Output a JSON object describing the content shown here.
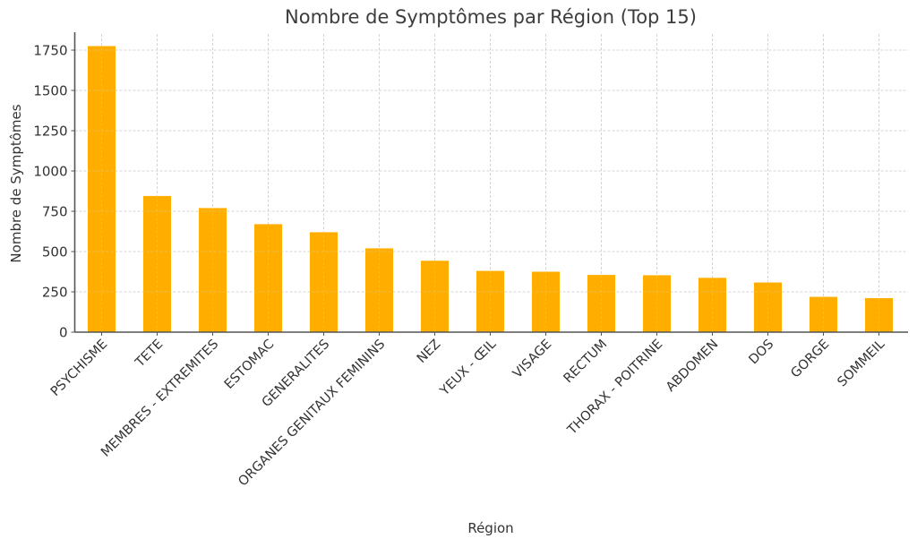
{
  "chart_data": {
    "type": "bar",
    "title": "Nombre de Symptômes par Région (Top 15)",
    "xlabel": "Région",
    "ylabel": "Nombre de Symptômes",
    "categories": [
      "PSYCHISME",
      "TETE",
      "MEMBRES - EXTREMITES",
      "ESTOMAC",
      "GENERALITES",
      "ORGANES GENITAUX FEMININS",
      "NEZ",
      "YEUX - ŒIL",
      "VISAGE",
      "RECTUM",
      "THORAX - POITRINE",
      "ABDOMEN",
      "DOS",
      "GORGE",
      "SOMMEIL"
    ],
    "values": [
      1775,
      845,
      770,
      670,
      620,
      520,
      443,
      380,
      375,
      355,
      353,
      337,
      308,
      219,
      211
    ],
    "ylim": [
      0,
      1860
    ],
    "yticks": [
      0,
      250,
      500,
      750,
      1000,
      1250,
      1500,
      1750
    ],
    "grid": true,
    "legend": null,
    "bar_color": "#FFAE00",
    "grid_color": "#d0d0d0",
    "axis_color": "#555555"
  }
}
